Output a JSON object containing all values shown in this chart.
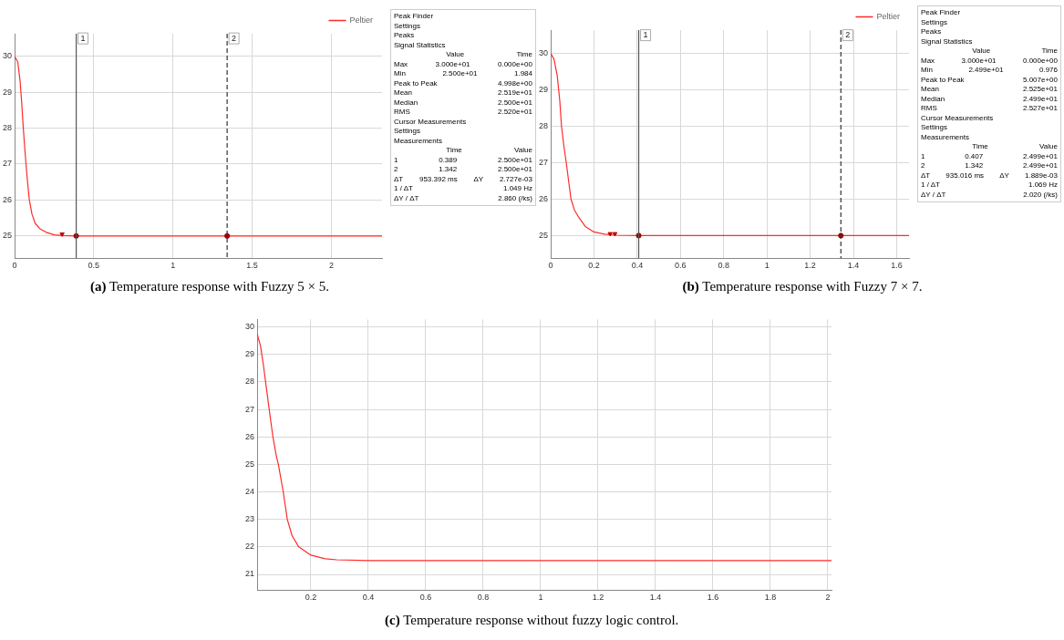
{
  "chart_data": [
    {
      "type": "line",
      "title": "(a) Temperature response with Fuzzy 5 × 5.",
      "xlim": [
        0,
        2.32
      ],
      "ylim": [
        24.38,
        30.63
      ],
      "xticks": [
        0,
        0.5,
        1,
        1.5,
        2
      ],
      "yticks": [
        25,
        26,
        27,
        28,
        29,
        30
      ],
      "grid": true,
      "legend": "top right",
      "marker": "none",
      "line_style": "solid",
      "series": [
        {
          "name": "Peltier",
          "color": "#ff2a2a",
          "x": [
            0,
            0.02,
            0.035,
            0.045,
            0.055,
            0.065,
            0.072,
            0.082,
            0.093,
            0.11,
            0.13,
            0.16,
            0.2,
            0.25,
            0.3,
            0.39,
            2.32
          ],
          "values": [
            30,
            29.85,
            29.3,
            28.7,
            28,
            27.4,
            27,
            26.5,
            26,
            25.6,
            25.35,
            25.2,
            25.1,
            25.03,
            25.01,
            25,
            25
          ]
        },
        {
          "type": "scatter",
          "marker": "triangle",
          "color": "#c00000",
          "x": [
            0.3
          ],
          "values": [
            25.05
          ]
        },
        {
          "type": "scatter",
          "marker": "circle",
          "color": "#a00000",
          "x": [
            0.389,
            1.342
          ],
          "values": [
            25,
            25
          ]
        }
      ],
      "ref_lines": [
        {
          "axis": "x",
          "value": 0.389,
          "line_style": "solid",
          "color": "#555555"
        },
        {
          "axis": "x",
          "value": 1.342,
          "line_style": "dashed",
          "color": "#333333"
        }
      ],
      "annotations": [
        {
          "text": "1",
          "x": 0.389,
          "y": 30.5
        },
        {
          "text": "2",
          "x": 1.342,
          "y": 30.5
        },
        "Peak Finder",
        "Settings",
        "Peaks",
        "Signal Statistics",
        "\tValue\tTime",
        "Max\t3.000e+01\t0.000e+00",
        "Min\t2.500e+01\t1.984",
        "Peak to Peak\t4.998e+00",
        "Mean\t2.519e+01",
        "Median\t2.500e+01",
        "RMS\t2.520e+01",
        "Cursor Measurements",
        "Settings",
        "Measurements",
        "\tTime\tValue",
        "1\t0.389\t2.500e+01",
        "2\t1.342\t2.500e+01",
        "ΔT\t953.392 ms\tΔY\t2.727e-03",
        "1 / ΔT\t1.049 Hz",
        "ΔY / ΔT\t2.860 (/ks)"
      ]
    },
    {
      "type": "line",
      "title": "(b) Temperature response with Fuzzy 7 × 7.",
      "xlim": [
        0,
        1.657
      ],
      "ylim": [
        24.38,
        30.64
      ],
      "xticks": [
        0,
        0.2,
        0.4,
        0.6,
        0.8,
        1,
        1.2,
        1.4,
        1.6
      ],
      "yticks": [
        25,
        26,
        27,
        28,
        29,
        30
      ],
      "grid": true,
      "legend": "top right",
      "marker": "none",
      "line_style": "solid",
      "series": [
        {
          "name": "Peltier",
          "color": "#ff2a2a",
          "x": [
            0,
            0.015,
            0.03,
            0.042,
            0.05,
            0.06,
            0.072,
            0.085,
            0.094,
            0.11,
            0.13,
            0.16,
            0.2,
            0.25,
            0.3,
            0.407,
            1.657
          ],
          "values": [
            30,
            29.85,
            29.4,
            28.7,
            28,
            27.5,
            27,
            26.4,
            26,
            25.7,
            25.5,
            25.25,
            25.1,
            25.04,
            25.01,
            25,
            25
          ]
        },
        {
          "type": "scatter",
          "marker": "triangle",
          "color": "#c00000",
          "x": [
            0.275,
            0.297
          ],
          "values": [
            25.05,
            25.05
          ]
        },
        {
          "type": "scatter",
          "marker": "circle",
          "color": "#a00000",
          "x": [
            0.407,
            1.342
          ],
          "values": [
            25,
            25
          ]
        }
      ],
      "ref_lines": [
        {
          "axis": "x",
          "value": 0.407,
          "line_style": "solid",
          "color": "#555555"
        },
        {
          "axis": "x",
          "value": 1.342,
          "line_style": "dashed",
          "color": "#333333"
        }
      ],
      "annotations": [
        {
          "text": "1",
          "x": 0.407,
          "y": 30.5
        },
        {
          "text": "2",
          "x": 1.342,
          "y": 30.5
        },
        "Peak Finder",
        "Settings",
        "Peaks",
        "Signal Statistics",
        "\tValue\tTime",
        "Max\t3.000e+01\t0.000e+00",
        "Min\t2.499e+01\t0.976",
        "Peak to Peak\t5.007e+00",
        "Mean\t2.525e+01",
        "Median\t2.499e+01",
        "RMS\t2.527e+01",
        "Cursor Measurements",
        "Settings",
        "Measurements",
        "\tTime\tValue",
        "1\t0.407\t2.499e+01",
        "2\t1.342\t2.499e+01",
        "ΔT\t935.016 ms\tΔY\t1.889e-03",
        "1 / ΔT\t1.069 Hz",
        "ΔY / ΔT\t2.020 (/ks)"
      ]
    },
    {
      "type": "line",
      "title": "(c) Temperature response without fuzzy logic control.",
      "xlim": [
        0.013,
        2.013
      ],
      "ylim": [
        20.43,
        30.27
      ],
      "xticks": [
        0.2,
        0.4,
        0.6,
        0.8,
        1,
        1.2,
        1.4,
        1.6,
        1.8,
        2
      ],
      "yticks": [
        21,
        22,
        23,
        24,
        25,
        26,
        27,
        28,
        29,
        30
      ],
      "grid": true,
      "marker": "none",
      "line_style": "solid",
      "series": [
        {
          "color": "#ff2a2a",
          "x": [
            0.013,
            0.025,
            0.035,
            0.045,
            0.055,
            0.068,
            0.08,
            0.087,
            0.104,
            0.118,
            0.135,
            0.158,
            0.2,
            0.25,
            0.29,
            0.4,
            2.013
          ],
          "values": [
            29.75,
            29.3,
            28.6,
            27.8,
            27,
            26,
            25.3,
            25,
            24,
            23,
            22.4,
            22,
            21.7,
            21.57,
            21.53,
            21.5,
            21.5
          ]
        }
      ]
    }
  ]
}
